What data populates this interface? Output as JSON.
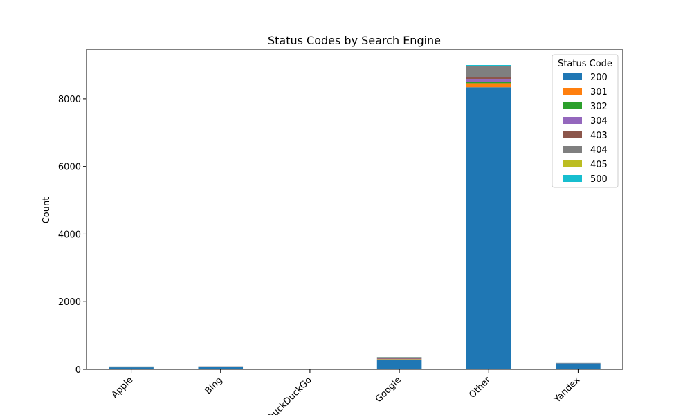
{
  "chart_data": {
    "type": "bar",
    "stacked": true,
    "title": "Status Codes by Search Engine",
    "xlabel": "",
    "ylabel": "Count",
    "ylim": [
      0,
      9450
    ],
    "yticks": [
      0,
      2000,
      4000,
      6000,
      8000
    ],
    "categories": [
      "Apple",
      "Bing",
      "DuckDuckGo",
      "Google",
      "Other",
      "Yandex"
    ],
    "legend": {
      "title": "Status Code",
      "placement": "top-right"
    },
    "series": [
      {
        "name": "200",
        "color": "#1f77b4",
        "values": [
          60,
          85,
          0,
          290,
          8340,
          175
        ]
      },
      {
        "name": "301",
        "color": "#ff7f0e",
        "values": [
          5,
          2,
          0,
          10,
          120,
          3
        ]
      },
      {
        "name": "302",
        "color": "#2ca02c",
        "values": [
          2,
          0,
          0,
          5,
          30,
          0
        ]
      },
      {
        "name": "304",
        "color": "#9467bd",
        "values": [
          3,
          1,
          0,
          10,
          100,
          2
        ]
      },
      {
        "name": "403",
        "color": "#8c564b",
        "values": [
          5,
          1,
          0,
          20,
          60,
          2
        ]
      },
      {
        "name": "404",
        "color": "#7f7f7f",
        "values": [
          10,
          3,
          0,
          25,
          310,
          5
        ]
      },
      {
        "name": "405",
        "color": "#bcbd22",
        "values": [
          0,
          0,
          0,
          2,
          10,
          0
        ]
      },
      {
        "name": "500",
        "color": "#17becf",
        "values": [
          1,
          0,
          0,
          3,
          30,
          1
        ]
      }
    ]
  }
}
